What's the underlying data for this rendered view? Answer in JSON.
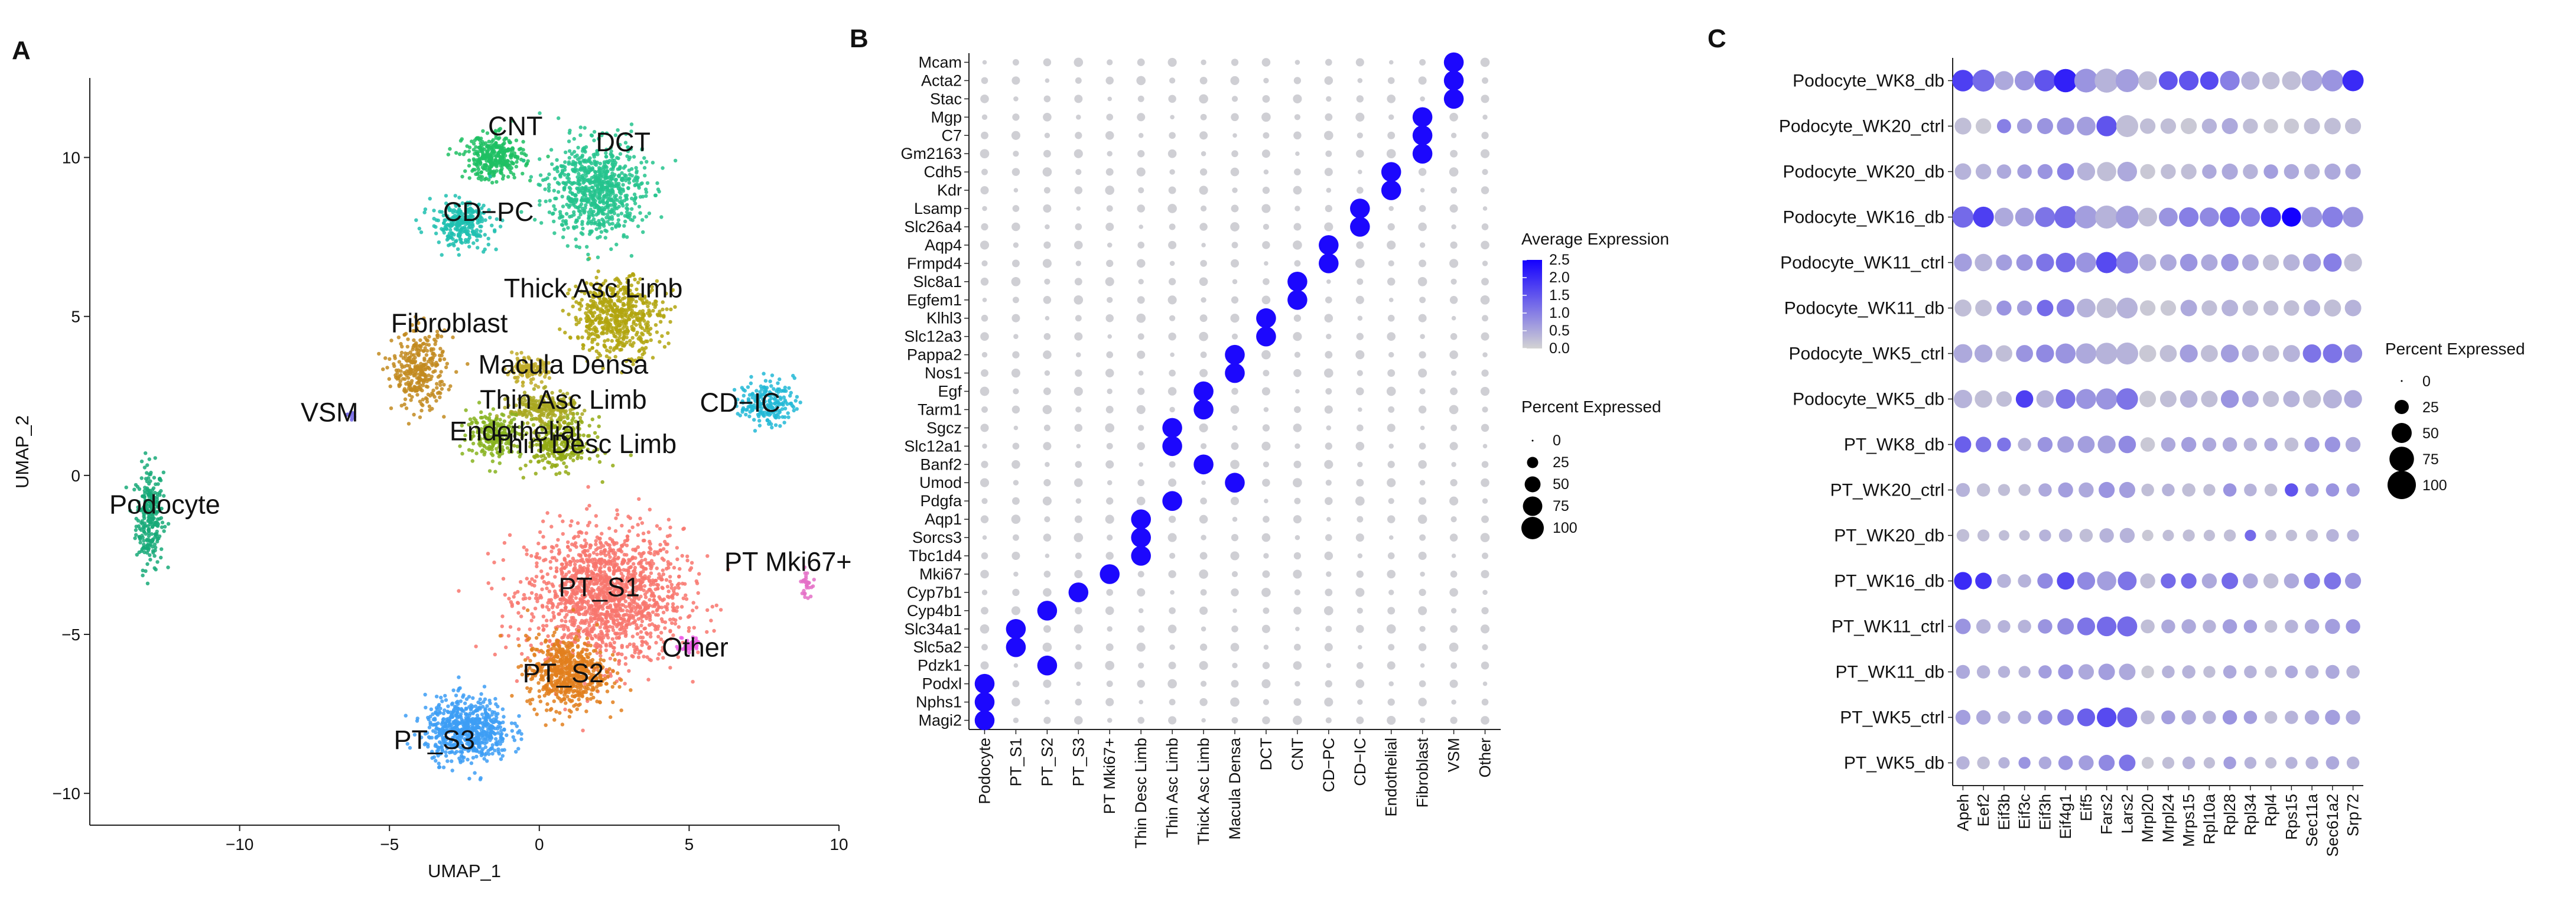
{
  "figure_title": "",
  "panels": {
    "a": "A",
    "b": "B",
    "c": "C"
  },
  "colors": {
    "low": "#d3d3d3",
    "high": "#1400ff",
    "point": "#000000"
  },
  "chart_data": [
    {
      "type": "scatter",
      "title": "",
      "xlabel": "UMAP_1",
      "ylabel": "UMAP_2",
      "xlim": [
        -15,
        10
      ],
      "ylim": [
        -11,
        12.5
      ],
      "xticks": [
        -10,
        -5,
        0,
        5,
        10
      ],
      "yticks": [
        -10,
        -5,
        0,
        5,
        10
      ],
      "xtick_labels": [
        "−10",
        "−5",
        "0",
        "5",
        "10"
      ],
      "ytick_labels": [
        "−10",
        "−5",
        "0",
        "5",
        "10"
      ],
      "clusters": [
        {
          "name": "Podocyte",
          "color": "#17a978",
          "label_at": [
            -12.5,
            -1.2
          ],
          "center": [
            -13.0,
            -1.3
          ],
          "spread": [
            0.45,
            1.6
          ],
          "count": 260
        },
        {
          "name": "PT_S1",
          "color": "#f8766d",
          "label_at": [
            2.0,
            -3.8
          ],
          "center": [
            2.2,
            -3.8
          ],
          "spread": [
            2.6,
            2.1
          ],
          "count": 1500
        },
        {
          "name": "PT_S2",
          "color": "#e27f1d",
          "label_at": [
            0.8,
            -6.5
          ],
          "center": [
            0.9,
            -6.2
          ],
          "spread": [
            1.3,
            1.1
          ],
          "count": 600
        },
        {
          "name": "PT_S3",
          "color": "#3d9ef5",
          "label_at": [
            -3.5,
            -8.6
          ],
          "center": [
            -2.4,
            -8.0
          ],
          "spread": [
            1.4,
            1.0
          ],
          "count": 650
        },
        {
          "name": "PT Mki67+",
          "color": "#e46fc7",
          "label_at": [
            8.3,
            -3.0
          ],
          "center": [
            8.9,
            -3.4
          ],
          "spread": [
            0.18,
            0.4
          ],
          "count": 30
        },
        {
          "name": "Thin Desc Limb",
          "color": "#93aa14",
          "label_at": [
            1.5,
            0.7
          ],
          "center": [
            0.7,
            1.0
          ],
          "spread": [
            1.1,
            0.8
          ],
          "count": 300
        },
        {
          "name": "Thin Asc Limb",
          "color": "#a9a821",
          "label_at": [
            0.8,
            2.1
          ],
          "center": [
            0.1,
            2.1
          ],
          "spread": [
            1.1,
            0.5
          ],
          "count": 220
        },
        {
          "name": "Thick Asc Limb",
          "color": "#b1a50e",
          "label_at": [
            1.8,
            5.6
          ],
          "center": [
            2.6,
            5.0
          ],
          "spread": [
            1.5,
            1.2
          ],
          "count": 550
        },
        {
          "name": "Macula Densa",
          "color": "#c0ab2a",
          "label_at": [
            0.8,
            3.2
          ],
          "center": [
            -0.4,
            3.3
          ],
          "spread": [
            0.7,
            0.4
          ],
          "count": 120
        },
        {
          "name": "Endothelial",
          "color": "#87b31e",
          "label_at": [
            -0.8,
            1.1
          ],
          "center": [
            -1.5,
            1.3
          ],
          "spread": [
            0.9,
            0.7
          ],
          "count": 220
        },
        {
          "name": "Fibroblast",
          "color": "#c28a1e",
          "label_at": [
            -3.0,
            4.5
          ],
          "center": [
            -4.0,
            3.3
          ],
          "spread": [
            0.9,
            1.2
          ],
          "count": 320
        },
        {
          "name": "VSM",
          "color": "#7a6fe5",
          "label_at": [
            -7.0,
            1.7
          ],
          "center": [
            -6.3,
            1.9
          ],
          "spread": [
            0.2,
            0.15
          ],
          "count": 15
        },
        {
          "name": "CNT",
          "color": "#1ec063",
          "label_at": [
            -0.8,
            10.7
          ],
          "center": [
            -1.5,
            10.0
          ],
          "spread": [
            1.0,
            0.7
          ],
          "count": 320
        },
        {
          "name": "DCT",
          "color": "#24c38d",
          "label_at": [
            2.8,
            10.2
          ],
          "center": [
            1.9,
            9.0
          ],
          "spread": [
            1.6,
            1.5
          ],
          "count": 750
        },
        {
          "name": "CD−PC",
          "color": "#1fbfb0",
          "label_at": [
            -1.7,
            8.0
          ],
          "center": [
            -2.6,
            7.9
          ],
          "spread": [
            1.0,
            0.7
          ],
          "count": 260
        },
        {
          "name": "CD−IC",
          "color": "#22b8d6",
          "label_at": [
            6.7,
            2.0
          ],
          "center": [
            7.6,
            2.3
          ],
          "spread": [
            0.9,
            0.7
          ],
          "count": 200
        },
        {
          "name": "Other",
          "color": "#ee5ce8",
          "label_at": [
            5.2,
            -5.7
          ],
          "center": [
            5.0,
            -5.3
          ],
          "spread": [
            0.35,
            0.25
          ],
          "count": 35
        }
      ]
    },
    {
      "type": "dotplot",
      "xlabel": "",
      "ylabel": "",
      "categories": [
        "Podocyte",
        "PT_S1",
        "PT_S2",
        "PT_S3",
        "PT Mki67+",
        "Thin Desc Limb",
        "Thin Asc Limb",
        "Thick Asc Limb",
        "Macula Densa",
        "DCT",
        "CNT",
        "CD−PC",
        "CD−IC",
        "Endothelial",
        "Fibroblast",
        "VSM",
        "Other"
      ],
      "genes": [
        "Mcam",
        "Acta2",
        "Stac",
        "Mgp",
        "C7",
        "Gm2163",
        "Cdh5",
        "Kdr",
        "Lsamp",
        "Slc26a4",
        "Aqp4",
        "Frmpd4",
        "Slc8a1",
        "Egfem1",
        "Klhl3",
        "Slc12a3",
        "Pappa2",
        "Nos1",
        "Egf",
        "Tarm1",
        "Sgcz",
        "Slc12a1",
        "Banf2",
        "Umod",
        "Pdgfa",
        "Aqp1",
        "Sorcs3",
        "Tbc1d4",
        "Mki67",
        "Cyp7b1",
        "Cyp4b1",
        "Slc34a1",
        "Slc5a2",
        "Pdzk1",
        "Podxl",
        "Nphs1",
        "Magi2"
      ],
      "marker_category": [
        15,
        15,
        15,
        14,
        14,
        14,
        13,
        13,
        12,
        12,
        11,
        11,
        10,
        10,
        9,
        9,
        8,
        8,
        7,
        7,
        6,
        6,
        7,
        8,
        6,
        5,
        5,
        5,
        4,
        3,
        2,
        1,
        1,
        2,
        0,
        0,
        0
      ],
      "size_legend": {
        "title": "Percent Expressed",
        "breaks": [
          0,
          25,
          50,
          75,
          100
        ]
      },
      "color_legend": {
        "title": "Average Expression",
        "breaks": [
          0.0,
          0.5,
          1.0,
          1.5,
          2.0,
          2.5
        ],
        "labels": [
          "0.0",
          "0.5",
          "1.0",
          "1.5",
          "2.0",
          "2.5"
        ]
      }
    },
    {
      "type": "dotplot",
      "xlabel": "",
      "ylabel": "",
      "genes": [
        "Apeh",
        "Eef2",
        "Eif3b",
        "Eif3c",
        "Eif3h",
        "Eif4g1",
        "Eif5",
        "Fars2",
        "Lars2",
        "Mrpl20",
        "Mrpl24",
        "Mrps15",
        "Rpl10a",
        "Rpl28",
        "Rpl34",
        "Rpl4",
        "Rps15",
        "Sec11a",
        "Sec61a2",
        "Srp72"
      ],
      "groups": [
        "Podocyte_WK8_db",
        "Podocyte_WK20_ctrl",
        "Podocyte_WK20_db",
        "Podocyte_WK16_db",
        "Podocyte_WK11_ctrl",
        "Podocyte_WK11_db",
        "Podocyte_WK5_ctrl",
        "Podocyte_WK5_db",
        "PT_WK8_db",
        "PT_WK20_ctrl",
        "PT_WK20_db",
        "PT_WK16_db",
        "PT_WK11_ctrl",
        "PT_WK11_db",
        "PT_WK5_ctrl",
        "PT_WK5_db"
      ],
      "percent": [
        [
          58,
          60,
          45,
          48,
          58,
          68,
          70,
          72,
          66,
          44,
          44,
          48,
          42,
          48,
          42,
          38,
          44,
          54,
          58,
          56
        ],
        [
          35,
          30,
          25,
          28,
          32,
          38,
          44,
          52,
          60,
          30,
          30,
          32,
          28,
          32,
          28,
          26,
          28,
          32,
          34,
          32
        ],
        [
          34,
          30,
          26,
          26,
          28,
          36,
          40,
          46,
          48,
          28,
          28,
          30,
          26,
          32,
          28,
          26,
          28,
          30,
          32,
          30
        ],
        [
          56,
          54,
          44,
          44,
          50,
          62,
          64,
          66,
          64,
          44,
          44,
          48,
          46,
          50,
          46,
          50,
          46,
          52,
          54,
          52
        ],
        [
          40,
          38,
          32,
          34,
          40,
          48,
          50,
          56,
          60,
          36,
          34,
          38,
          34,
          38,
          34,
          32,
          34,
          40,
          42,
          40
        ],
        [
          36,
          34,
          28,
          28,
          34,
          40,
          44,
          50,
          54,
          30,
          30,
          34,
          30,
          34,
          30,
          28,
          30,
          34,
          36,
          34
        ],
        [
          44,
          40,
          34,
          36,
          40,
          50,
          52,
          58,
          60,
          36,
          36,
          40,
          36,
          40,
          36,
          34,
          36,
          42,
          46,
          42
        ],
        [
          42,
          38,
          30,
          38,
          38,
          48,
          50,
          56,
          58,
          34,
          34,
          38,
          34,
          40,
          34,
          32,
          34,
          40,
          44,
          40
        ],
        [
          34,
          30,
          24,
          22,
          28,
          34,
          36,
          40,
          38,
          26,
          26,
          28,
          24,
          26,
          22,
          22,
          24,
          28,
          30,
          28
        ],
        [
          24,
          22,
          18,
          18,
          22,
          28,
          28,
          32,
          32,
          20,
          20,
          22,
          18,
          22,
          20,
          20,
          22,
          22,
          22,
          22
        ],
        [
          20,
          18,
          14,
          14,
          18,
          22,
          22,
          26,
          28,
          16,
          16,
          18,
          16,
          18,
          16,
          16,
          16,
          18,
          20,
          18
        ],
        [
          40,
          34,
          24,
          22,
          30,
          38,
          40,
          46,
          44,
          28,
          28,
          30,
          28,
          34,
          28,
          28,
          28,
          32,
          36,
          32
        ],
        [
          30,
          26,
          20,
          22,
          26,
          34,
          40,
          48,
          50,
          24,
          24,
          26,
          22,
          26,
          22,
          20,
          22,
          26,
          28,
          26
        ],
        [
          24,
          22,
          18,
          18,
          22,
          28,
          30,
          34,
          34,
          20,
          20,
          22,
          18,
          22,
          20,
          18,
          20,
          22,
          24,
          22
        ],
        [
          28,
          26,
          20,
          22,
          26,
          34,
          40,
          48,
          50,
          24,
          24,
          26,
          22,
          26,
          22,
          20,
          22,
          26,
          28,
          26
        ],
        [
          22,
          20,
          16,
          18,
          20,
          26,
          28,
          32,
          34,
          18,
          18,
          20,
          16,
          20,
          18,
          16,
          18,
          20,
          22,
          20
        ]
      ],
      "expression": [
        [
          1.4,
          1.0,
          0.4,
          0.6,
          1.2,
          1.7,
          0.6,
          0.3,
          0.5,
          0.2,
          1.2,
          1.2,
          1.3,
          0.8,
          0.3,
          0.2,
          0.2,
          0.4,
          0.6,
          1.6
        ],
        [
          0.2,
          0.1,
          0.8,
          0.5,
          0.6,
          0.6,
          0.5,
          1.2,
          0.2,
          0.2,
          0.2,
          0.1,
          0.3,
          0.4,
          0.2,
          0.1,
          0.1,
          0.2,
          0.2,
          0.2
        ],
        [
          0.3,
          0.3,
          0.4,
          0.5,
          0.6,
          0.8,
          0.3,
          0.2,
          0.4,
          0.1,
          0.2,
          0.2,
          0.4,
          0.4,
          0.3,
          0.5,
          0.4,
          0.3,
          0.4,
          0.4
        ],
        [
          1.0,
          1.4,
          0.4,
          0.5,
          0.9,
          1.0,
          0.5,
          0.3,
          0.5,
          0.2,
          0.6,
          0.8,
          0.7,
          1.0,
          0.8,
          1.6,
          2.0,
          0.6,
          0.8,
          0.6
        ],
        [
          0.5,
          0.3,
          0.5,
          0.6,
          0.9,
          1.0,
          0.6,
          1.3,
          0.8,
          0.3,
          0.4,
          0.6,
          0.4,
          0.6,
          0.4,
          0.2,
          0.3,
          0.5,
          0.8,
          0.2
        ],
        [
          0.2,
          0.2,
          0.6,
          0.5,
          1.0,
          0.8,
          0.3,
          0.2,
          0.3,
          0.1,
          0.1,
          0.4,
          0.2,
          0.3,
          0.2,
          0.2,
          0.2,
          0.3,
          0.2,
          0.3
        ],
        [
          0.4,
          0.4,
          0.2,
          0.6,
          0.7,
          0.6,
          0.4,
          0.3,
          0.3,
          0.1,
          0.2,
          0.5,
          0.2,
          0.5,
          0.3,
          0.2,
          0.3,
          0.9,
          0.9,
          0.7
        ],
        [
          0.3,
          0.2,
          0.2,
          1.4,
          0.3,
          0.9,
          0.6,
          0.6,
          0.9,
          0.1,
          0.2,
          0.3,
          0.2,
          0.6,
          0.4,
          0.2,
          0.3,
          0.2,
          0.3,
          0.4
        ],
        [
          1.1,
          0.9,
          0.9,
          0.3,
          0.6,
          0.5,
          0.5,
          0.5,
          0.7,
          0.1,
          0.4,
          0.5,
          0.4,
          0.4,
          0.3,
          0.4,
          0.2,
          0.5,
          0.6,
          0.4
        ],
        [
          0.3,
          0.2,
          0.2,
          0.2,
          0.4,
          0.5,
          0.4,
          0.6,
          0.5,
          0.2,
          0.3,
          0.2,
          0.2,
          0.6,
          0.3,
          0.2,
          1.2,
          0.5,
          0.6,
          0.5
        ],
        [
          0.2,
          0.2,
          0.2,
          0.2,
          0.3,
          0.3,
          0.2,
          0.3,
          0.3,
          0.1,
          0.2,
          0.2,
          0.2,
          0.2,
          1.0,
          0.2,
          0.2,
          0.2,
          0.3,
          0.3
        ],
        [
          1.6,
          1.5,
          0.3,
          0.3,
          0.7,
          1.3,
          0.7,
          0.5,
          0.9,
          0.2,
          1.0,
          1.0,
          0.4,
          1.0,
          0.4,
          0.2,
          0.4,
          0.8,
          0.9,
          0.6
        ],
        [
          0.6,
          0.3,
          0.3,
          0.3,
          0.6,
          0.7,
          0.9,
          1.0,
          1.0,
          0.2,
          0.4,
          0.4,
          0.3,
          0.5,
          0.5,
          0.2,
          0.3,
          0.4,
          0.5,
          0.6
        ],
        [
          0.4,
          0.3,
          0.3,
          0.3,
          0.5,
          0.6,
          0.4,
          0.5,
          0.4,
          0.1,
          0.3,
          0.3,
          0.2,
          0.4,
          0.3,
          0.2,
          0.4,
          0.3,
          0.4,
          0.3
        ],
        [
          0.5,
          0.4,
          0.3,
          0.4,
          0.6,
          0.8,
          1.1,
          1.3,
          1.1,
          0.2,
          0.5,
          0.4,
          0.3,
          0.6,
          0.5,
          0.2,
          0.3,
          0.4,
          0.5,
          0.4
        ],
        [
          0.3,
          0.2,
          0.3,
          0.6,
          0.4,
          0.6,
          0.5,
          0.7,
          0.9,
          0.1,
          0.2,
          0.3,
          0.2,
          0.5,
          0.3,
          0.2,
          0.3,
          0.3,
          0.4,
          0.3
        ]
      ],
      "size_legend": {
        "title": "Percent Expressed",
        "breaks": [
          0,
          25,
          50,
          75,
          100
        ]
      }
    }
  ]
}
